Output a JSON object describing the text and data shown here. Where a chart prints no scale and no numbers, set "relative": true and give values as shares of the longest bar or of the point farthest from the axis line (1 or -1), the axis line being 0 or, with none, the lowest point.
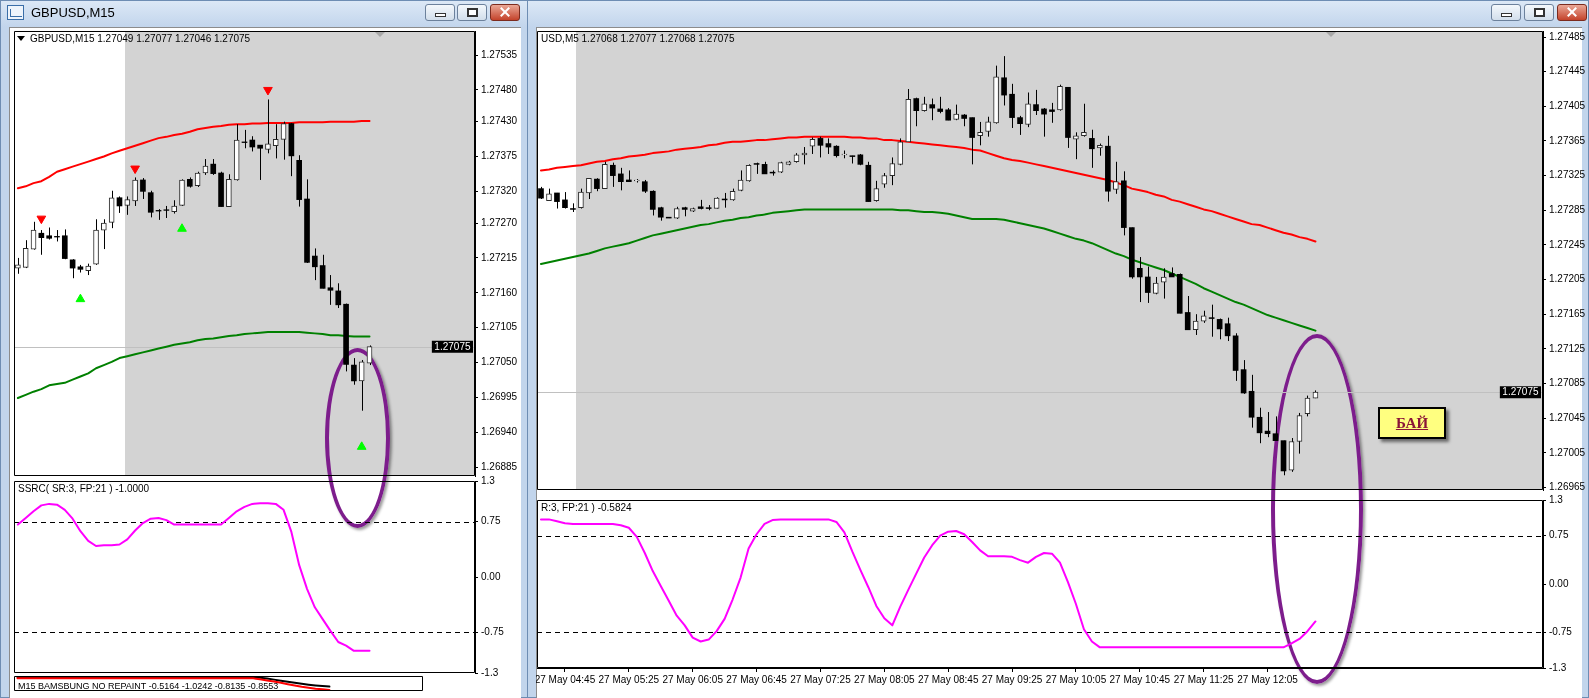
{
  "chart_data": [
    {
      "type": "candlestick",
      "title": "GBPUSD,M15",
      "subtitle": "GBPUSD,M15 1.27049 1.27077 1.27046 1.27075",
      "categories": [
        null,
        null,
        null,
        null,
        null,
        null,
        null,
        null,
        null,
        null,
        null,
        null,
        null,
        null,
        null,
        null,
        null,
        null,
        null,
        null,
        null,
        null,
        null,
        null,
        null,
        null,
        null,
        null,
        null,
        null,
        null,
        null,
        null,
        null,
        null,
        null,
        null,
        null,
        null,
        null,
        null,
        null,
        null,
        null,
        null,
        null,
        null,
        null,
        null,
        null,
        null,
        null,
        null,
        null,
        null,
        null,
        null,
        null,
        null
      ],
      "ohlc": [
        [
          1.27199,
          1.27215,
          1.2719,
          1.27204
        ],
        [
          1.272,
          1.27243,
          1.27199,
          1.2723
        ],
        [
          1.27229,
          1.27272,
          1.27228,
          1.27259
        ],
        [
          1.27254,
          1.27259,
          1.2722,
          1.27247
        ],
        [
          1.2725,
          1.27263,
          1.27244,
          1.27246
        ],
        [
          1.27249,
          1.27259,
          1.27241,
          1.27248
        ],
        [
          1.2725,
          1.2726,
          1.27213,
          1.27214
        ],
        [
          1.27212,
          1.27213,
          1.27183,
          1.27199
        ],
        [
          1.27201,
          1.27204,
          1.27192,
          1.27197
        ],
        [
          1.27195,
          1.27206,
          1.27188,
          1.27202
        ],
        [
          1.27205,
          1.27276,
          1.27204,
          1.27259
        ],
        [
          1.27259,
          1.27276,
          1.27229,
          1.2727
        ],
        [
          1.27271,
          1.27321,
          1.27262,
          1.2731
        ],
        [
          1.2731,
          1.27312,
          1.27286,
          1.27297
        ],
        [
          1.27298,
          1.27312,
          1.27283,
          1.27307
        ],
        [
          1.27305,
          1.27342,
          1.27297,
          1.27338
        ],
        [
          1.27338,
          1.27341,
          1.27308,
          1.2732
        ],
        [
          1.27318,
          1.27321,
          1.27279,
          1.27287
        ],
        [
          1.2729,
          1.27292,
          1.27275,
          1.27289
        ],
        [
          1.27291,
          1.27297,
          1.27278,
          1.2729
        ],
        [
          1.27288,
          1.27306,
          1.27285,
          1.27297
        ],
        [
          1.27298,
          1.27339,
          1.27297,
          1.27338
        ],
        [
          1.27339,
          1.27342,
          1.27326,
          1.27328
        ],
        [
          1.27329,
          1.27351,
          1.27327,
          1.27349
        ],
        [
          1.27349,
          1.27371,
          1.27346,
          1.2736
        ],
        [
          1.27363,
          1.27371,
          1.27346,
          1.27348
        ],
        [
          1.27349,
          1.27351,
          1.27296,
          1.27296
        ],
        [
          1.27296,
          1.27347,
          1.27296,
          1.27339
        ],
        [
          1.27338,
          1.27426,
          1.27337,
          1.27401
        ],
        [
          1.27398,
          1.27417,
          1.27388,
          1.27397
        ],
        [
          1.27401,
          1.27407,
          1.27383,
          1.2739
        ],
        [
          1.27393,
          1.27393,
          1.27338,
          1.27388
        ],
        [
          1.27386,
          1.27465,
          1.2738,
          1.27395
        ],
        [
          1.27392,
          1.27426,
          1.27372,
          1.27402
        ],
        [
          1.27402,
          1.2743,
          1.2737,
          1.27427
        ],
        [
          1.27427,
          1.27428,
          1.27344,
          1.27376
        ],
        [
          1.27369,
          1.27377,
          1.27296,
          1.27307
        ],
        [
          1.27308,
          1.27339,
          1.27207,
          1.27208
        ],
        [
          1.27218,
          1.2723,
          1.2718,
          1.27201
        ],
        [
          1.27203,
          1.2722,
          1.27167,
          1.27167
        ],
        [
          1.27168,
          1.27188,
          1.27141,
          1.27164
        ],
        [
          1.27163,
          1.27175,
          1.27136,
          1.27141
        ],
        [
          1.27142,
          1.27143,
          1.27036,
          1.27047
        ],
        [
          1.27046,
          1.27057,
          1.27015,
          1.27021
        ],
        [
          1.27021,
          1.27054,
          1.26974,
          1.27051
        ],
        [
          1.27049,
          1.27077,
          1.27046,
          1.27075
        ],
        null,
        null,
        null,
        null,
        null,
        null,
        null,
        null,
        null,
        null,
        null,
        null,
        null
      ],
      "series": [
        {
          "type": "line",
          "color": "#ff0000",
          "values": [
            1.27325,
            1.27328,
            1.27333,
            1.27336,
            1.27343,
            1.27351,
            1.27355,
            1.27359,
            1.27363,
            1.27367,
            1.27371,
            1.27375,
            1.2738,
            1.27384,
            1.27388,
            1.27392,
            1.27396,
            1.274,
            1.27404,
            1.27406,
            1.27409,
            1.27411,
            1.27414,
            1.27418,
            1.2742,
            1.27422,
            1.27423,
            1.27425,
            1.27426,
            1.27426,
            1.27427,
            1.27427,
            1.27428,
            1.27428,
            1.27428,
            1.27428,
            1.27429,
            1.27429,
            1.27429,
            1.27429,
            1.2743,
            1.2743,
            1.2743,
            1.2743,
            1.27431,
            1.27431,
            null,
            null,
            null,
            null,
            null,
            null,
            null,
            null,
            null,
            null,
            null,
            null,
            null
          ]
        },
        {
          "type": "line",
          "color": "#008000",
          "values": [
            1.26994,
            1.26999,
            1.27004,
            1.27008,
            1.27014,
            1.27016,
            1.27018,
            1.27023,
            1.27028,
            1.27033,
            1.27041,
            1.27046,
            1.27051,
            1.27057,
            1.2706,
            1.27063,
            1.27066,
            1.27069,
            1.27072,
            1.27075,
            1.27078,
            1.2708,
            1.27082,
            1.27085,
            1.27087,
            1.27088,
            1.2709,
            1.27092,
            1.27093,
            1.27095,
            1.27096,
            1.27097,
            1.27098,
            1.27098,
            1.27098,
            1.27098,
            1.27098,
            1.27097,
            1.27096,
            1.27095,
            1.27093,
            1.27093,
            1.27092,
            1.27091,
            1.27091,
            1.27091,
            null,
            null,
            null,
            null,
            null,
            null,
            null,
            null,
            null,
            null,
            null,
            null,
            null
          ]
        },
        {
          "type": "scatter",
          "color": "#ff0000",
          "marker": "triangle",
          "values": [
            null,
            null,
            null,
            1.27277,
            null,
            null,
            null,
            null,
            null,
            null,
            null,
            null,
            null,
            null,
            null,
            1.27356,
            null,
            null,
            null,
            null,
            null,
            null,
            null,
            null,
            null,
            null,
            null,
            null,
            null,
            null,
            null,
            null,
            1.2748,
            null,
            null,
            null,
            null,
            null,
            null,
            null,
            null,
            null,
            null,
            null,
            null,
            null,
            null,
            null,
            null,
            null,
            null,
            null,
            null,
            null,
            null,
            null,
            null,
            null,
            null
          ]
        },
        {
          "type": "scatter",
          "color": "#00ff00",
          "marker": "triangle",
          "values": [
            null,
            null,
            null,
            null,
            null,
            null,
            null,
            null,
            1.2715,
            null,
            null,
            null,
            null,
            null,
            null,
            null,
            null,
            null,
            null,
            null,
            null,
            1.27261,
            null,
            null,
            null,
            null,
            null,
            null,
            null,
            null,
            null,
            null,
            null,
            null,
            null,
            null,
            null,
            null,
            null,
            null,
            null,
            null,
            null,
            null,
            1.26917,
            null,
            null,
            null,
            null,
            null,
            null,
            null,
            null,
            null,
            null,
            null,
            null,
            null,
            null
          ]
        }
      ],
      "ylim": [
        1.26871,
        1.27573
      ],
      "yticks": [
        1.26885,
        {
          "value": 1.2694,
          "label": "1.26940"
        },
        1.26995,
        {
          "value": 1.2705,
          "label": "1.27050"
        },
        1.27105,
        {
          "value": 1.2716,
          "label": "1.27160"
        },
        1.27215,
        {
          "value": 1.2727,
          "label": "1.27270"
        },
        {
          "value": 1.2732,
          "label": "1.27320"
        },
        1.27375,
        {
          "value": 1.2743,
          "label": "1.27430"
        },
        {
          "value": 1.2748,
          "label": "1.27480"
        },
        1.27535
      ],
      "ref_lines": [
        {
          "axis": "y",
          "value": 1.27075,
          "label": "1.27075",
          "color": "#c0c0c0"
        }
      ],
      "tick_labels": "y"
    },
    {
      "type": "line",
      "title": "SSRC( SR:3, FP:21 ) -1.0000",
      "categories": [
        null,
        null,
        null,
        null,
        null,
        null,
        null,
        null,
        null,
        null,
        null,
        null,
        null,
        null,
        null,
        null,
        null,
        null,
        null,
        null,
        null,
        null,
        null,
        null,
        null,
        null,
        null,
        null,
        null,
        null,
        null,
        null,
        null,
        null,
        null,
        null,
        null,
        null,
        null,
        null,
        null,
        null,
        null,
        null,
        null,
        null,
        null,
        null,
        null,
        null,
        null,
        null,
        null,
        null,
        null,
        null,
        null,
        null,
        null
      ],
      "series": [
        {
          "color": "#ff00ff",
          "values": [
            0.71,
            0.8,
            0.89,
            0.97,
            0.99,
            0.98,
            0.91,
            0.79,
            0.62,
            0.49,
            0.42,
            0.43,
            0.43,
            0.44,
            0.51,
            0.63,
            0.73,
            0.79,
            0.8,
            0.77,
            0.71,
            0.71,
            0.71,
            0.71,
            0.71,
            0.71,
            0.71,
            0.8,
            0.89,
            0.95,
            0.99,
            1.0,
            1.0,
            0.99,
            0.91,
            0.61,
            0.16,
            -0.16,
            -0.41,
            -0.57,
            -0.73,
            -0.88,
            -0.93,
            -1.0,
            -1.0,
            -1.0,
            null,
            null,
            null,
            null,
            null,
            null,
            null,
            null,
            null,
            null,
            null,
            null,
            null
          ]
        }
      ],
      "ylim": [
        -1.3,
        1.3
      ],
      "yticks": [
        -1.3,
        -0.75,
        {
          "value": 0,
          "label": "0.00"
        },
        0.75,
        1.3
      ],
      "ref_lines": [
        {
          "axis": "y",
          "value": 0.75,
          "color": "#000000",
          "line_style": "dashed"
        },
        {
          "axis": "y",
          "value": -0.75,
          "color": "#000000",
          "line_style": "dashed"
        }
      ],
      "tick_labels": "y"
    },
    {
      "type": "line",
      "title": "M15 BAMSBUNG NO REPAINT -0.5164 -1.0242 -0.8135 -0.8553",
      "relative": true,
      "tick_labels": false,
      "categories": [
        null,
        null,
        null,
        null,
        null,
        null,
        null,
        null,
        null,
        null,
        null,
        null,
        null,
        null,
        null,
        null,
        null,
        null,
        null,
        null,
        null,
        null,
        null,
        null,
        null,
        null,
        null,
        null,
        null,
        null,
        null,
        null,
        null,
        null,
        null,
        null,
        null,
        null,
        null,
        null,
        null,
        null,
        null,
        null,
        null,
        null,
        null,
        null,
        null,
        null,
        null,
        null,
        null,
        null,
        null,
        null,
        null,
        null,
        null
      ],
      "series": [
        {
          "color": "#ff0000",
          "values": [
            0.9,
            0.9,
            0.9,
            0.9,
            0.9,
            0.9,
            0.9,
            0.9,
            0.9,
            0.9,
            0.9,
            0.9,
            0.9,
            0.9,
            0.9,
            0.9,
            0.9,
            0.9,
            0.9,
            0.9,
            0.9,
            0.9,
            0.9,
            0.9,
            0.9,
            0.9,
            0.9,
            0.9,
            0.9,
            0.9,
            0.9,
            0.9,
            0.9,
            0.9,
            0.9,
            0.82,
            0.74,
            0.65,
            0.55,
            0.45,
            0.35,
            0.25,
            0.17,
            0.1,
            0.05,
            0,
            null,
            null,
            null,
            null,
            null,
            null,
            null,
            null,
            null,
            null,
            null,
            null,
            null
          ]
        },
        {
          "color": "#000000",
          "values": [
            1,
            1,
            1,
            1,
            1,
            1,
            1,
            1,
            1,
            1,
            1,
            1,
            1,
            1,
            1,
            1,
            1,
            1,
            1,
            1,
            1,
            1,
            1,
            1,
            1,
            1,
            1,
            1,
            1,
            1,
            1,
            1,
            1,
            1,
            1,
            0.95,
            0.88,
            0.8,
            0.72,
            0.64,
            0.56,
            0.48,
            0.41,
            0.35,
            0.3,
            0.26,
            null,
            null,
            null,
            null,
            null,
            null,
            null,
            null,
            null,
            null,
            null,
            null,
            null
          ]
        }
      ]
    },
    {
      "type": "candlestick",
      "title": "USD,M5 1.27068 1.27077 1.27068 1.27075",
      "categories": [
        null,
        null,
        null,
        null,
        null,
        null,
        null,
        null,
        null,
        null,
        null,
        null,
        null,
        null,
        null,
        null,
        null,
        null,
        null,
        null,
        null,
        null,
        null,
        null,
        null,
        null,
        null,
        null,
        null,
        null,
        null,
        null,
        null,
        null,
        null,
        null,
        null,
        null,
        null,
        null,
        null,
        null,
        null,
        null,
        null,
        null,
        null,
        null,
        null,
        null,
        null,
        null,
        null,
        null,
        null,
        null,
        null,
        null,
        null,
        null,
        null,
        null,
        null,
        null,
        null,
        null,
        null,
        null,
        null,
        null,
        null,
        null,
        null,
        null,
        null,
        null,
        null,
        null,
        null,
        null,
        null,
        null,
        null,
        null,
        null,
        null,
        null,
        null,
        null,
        null,
        null,
        null,
        null,
        null,
        null,
        null,
        null,
        null,
        null,
        null,
        null,
        null,
        null,
        null,
        null,
        null,
        null,
        null,
        null,
        null,
        null,
        null,
        null,
        null,
        null,
        null,
        null,
        null,
        null,
        null,
        null,
        null,
        null,
        null,
        null,
        null
      ],
      "ohlc": [
        [
          1.2731,
          1.27312,
          1.27298,
          1.27299
        ],
        [
          1.27296,
          1.2731,
          1.27296,
          1.27304
        ],
        [
          1.27305,
          1.27305,
          1.27287,
          1.27295
        ],
        [
          1.27297,
          1.27306,
          1.27287,
          1.27288
        ],
        [
          1.27287,
          1.27293,
          1.27283,
          1.27286
        ],
        [
          1.27288,
          1.2731,
          1.27287,
          1.27306
        ],
        [
          1.27305,
          1.27322,
          1.27298,
          1.27322
        ],
        [
          1.27321,
          1.27322,
          1.27307,
          1.2731
        ],
        [
          1.2731,
          1.27341,
          1.2731,
          1.27338
        ],
        [
          1.27337,
          1.2734,
          1.27312,
          1.27325
        ],
        [
          1.27327,
          1.27334,
          1.27308,
          1.27318
        ],
        [
          1.2732,
          1.27331,
          1.27318,
          1.27318
        ],
        [
          1.27319,
          1.27321,
          1.27317,
          1.2732
        ],
        [
          1.27318,
          1.2732,
          1.27305,
          1.27307
        ],
        [
          1.27307,
          1.27308,
          1.27279,
          1.27286
        ],
        [
          1.27288,
          1.27289,
          1.27273,
          1.27277
        ],
        [
          1.27277,
          1.27277,
          1.27276,
          1.27276
        ],
        [
          1.27276,
          1.27289,
          1.27275,
          1.27287
        ],
        [
          1.27288,
          1.27289,
          1.27278,
          1.27286
        ],
        [
          1.27284,
          1.27288,
          1.27283,
          1.27287
        ],
        [
          1.27289,
          1.27297,
          1.27286,
          1.27287
        ],
        [
          1.27288,
          1.27291,
          1.27285,
          1.27287
        ],
        [
          1.27287,
          1.273,
          1.27287,
          1.27299
        ],
        [
          1.27298,
          1.27305,
          1.27288,
          1.27297
        ],
        [
          1.27297,
          1.2731,
          1.27296,
          1.27307
        ],
        [
          1.27308,
          1.27331,
          1.27307,
          1.2732
        ],
        [
          1.27319,
          1.27338,
          1.27318,
          1.27337
        ],
        [
          1.27339,
          1.2734,
          1.27327,
          1.27338
        ],
        [
          1.27338,
          1.27341,
          1.27327,
          1.27327
        ],
        [
          1.27329,
          1.27331,
          1.27325,
          1.27328
        ],
        [
          1.27329,
          1.27341,
          1.27328,
          1.2734
        ],
        [
          1.27338,
          1.27342,
          1.27337,
          1.27341
        ],
        [
          1.27341,
          1.27351,
          1.2734,
          1.27349
        ],
        [
          1.27349,
          1.27358,
          1.27338,
          1.27351
        ],
        [
          1.27359,
          1.27369,
          1.2735,
          1.27367
        ],
        [
          1.27368,
          1.2737,
          1.27346,
          1.2736
        ],
        [
          1.27362,
          1.27368,
          1.2735,
          1.27358
        ],
        [
          1.27359,
          1.2736,
          1.27346,
          1.27348
        ],
        [
          1.27349,
          1.27354,
          1.27345,
          1.2735
        ],
        [
          1.27348,
          1.27348,
          1.27339,
          1.27347
        ],
        [
          1.27349,
          1.2735,
          1.27337,
          1.27338
        ],
        [
          1.27337,
          1.27341,
          1.27295,
          1.27295
        ],
        [
          1.27296,
          1.27319,
          1.27295,
          1.2731
        ],
        [
          1.27315,
          1.27328,
          1.27311,
          1.27325
        ],
        [
          1.27325,
          1.27346,
          1.27314,
          1.27339
        ],
        [
          1.27338,
          1.27368,
          1.27337,
          1.27364
        ],
        [
          1.27364,
          1.27425,
          1.27364,
          1.27413
        ],
        [
          1.27414,
          1.27415,
          1.27382,
          1.274
        ],
        [
          1.274,
          1.27416,
          1.27399,
          1.27408
        ],
        [
          1.27407,
          1.27414,
          1.27389,
          1.27403
        ],
        [
          1.27402,
          1.27416,
          1.27397,
          1.27399
        ],
        [
          1.27401,
          1.27403,
          1.27389,
          1.27389
        ],
        [
          1.2739,
          1.27407,
          1.27389,
          1.27396
        ],
        [
          1.27395,
          1.27396,
          1.27382,
          1.27391
        ],
        [
          1.27392,
          1.27392,
          1.27338,
          1.27369
        ],
        [
          1.27371,
          1.27387,
          1.2736,
          1.27375
        ],
        [
          1.27376,
          1.27393,
          1.2737,
          1.27387
        ],
        [
          1.27386,
          1.27452,
          1.27385,
          1.27439
        ],
        [
          1.27438,
          1.27463,
          1.27406,
          1.27418
        ],
        [
          1.27419,
          1.27431,
          1.2738,
          1.27392
        ],
        [
          1.27392,
          1.27394,
          1.27372,
          1.27385
        ],
        [
          1.27384,
          1.27421,
          1.27381,
          1.27408
        ],
        [
          1.27407,
          1.27424,
          1.27395,
          1.274
        ],
        [
          1.27402,
          1.27403,
          1.2737,
          1.27396
        ],
        [
          1.27401,
          1.27409,
          1.27386,
          1.27399
        ],
        [
          1.27401,
          1.2743,
          1.274,
          1.27428
        ],
        [
          1.27427,
          1.27427,
          1.27357,
          1.27369
        ],
        [
          1.27367,
          1.27375,
          1.27344,
          1.27371
        ],
        [
          1.27371,
          1.27408,
          1.2737,
          1.27375
        ],
        [
          1.27368,
          1.27378,
          1.27334,
          1.27356
        ],
        [
          1.27357,
          1.27362,
          1.27348,
          1.2736
        ],
        [
          1.27359,
          1.27371,
          1.27295,
          1.27307
        ],
        [
          1.27309,
          1.27341,
          1.27304,
          1.27318
        ],
        [
          1.27319,
          1.2733,
          1.27256,
          1.27265
        ],
        [
          1.27265,
          1.27265,
          1.27206,
          1.27208
        ],
        [
          1.27218,
          1.27231,
          1.27179,
          1.27208
        ],
        [
          1.27208,
          1.2722,
          1.27178,
          1.2719
        ],
        [
          1.27189,
          1.27208,
          1.27188,
          1.27201
        ],
        [
          1.27202,
          1.27218,
          1.27183,
          1.27208
        ],
        [
          1.27212,
          1.27219,
          1.27208,
          1.27208
        ],
        [
          1.27211,
          1.27212,
          1.27166,
          1.27166
        ],
        [
          1.27167,
          1.27186,
          1.27147,
          1.27147
        ],
        [
          1.27147,
          1.27165,
          1.27141,
          1.27157
        ],
        [
          1.27157,
          1.27169,
          1.27155,
          1.27163
        ],
        [
          1.27161,
          1.27176,
          1.27139,
          1.2716
        ],
        [
          1.27159,
          1.2716,
          1.27136,
          1.27148
        ],
        [
          1.27154,
          1.27161,
          1.27134,
          1.2714
        ],
        [
          1.2714,
          1.27143,
          1.27088,
          1.271
        ],
        [
          1.27101,
          1.27112,
          1.27073,
          1.27074
        ],
        [
          1.27076,
          1.27095,
          1.27034,
          1.27046
        ],
        [
          1.27046,
          1.27057,
          1.27016,
          1.27028
        ],
        [
          1.2703,
          1.27052,
          1.27023,
          1.27027
        ],
        [
          1.27027,
          1.27047,
          1.27019,
          1.27019
        ],
        [
          1.27019,
          1.27019,
          1.26979,
          1.26984
        ],
        [
          1.26985,
          1.27022,
          1.26983,
          1.27018
        ],
        [
          1.27018,
          1.27051,
          1.27004,
          1.27048
        ],
        [
          1.2705,
          1.27071,
          1.27047,
          1.27068
        ],
        [
          1.27068,
          1.27077,
          1.27068,
          1.27075
        ],
        null,
        null,
        null,
        null,
        null,
        null,
        null,
        null,
        null,
        null,
        null,
        null,
        null,
        null,
        null,
        null,
        null,
        null,
        null,
        null,
        null,
        null,
        null,
        null,
        null,
        null,
        null,
        null
      ],
      "series": [
        {
          "type": "line",
          "color": "#ff0000",
          "values": [
            1.27331,
            1.27332,
            1.27334,
            1.27335,
            1.27336,
            1.27337,
            1.27339,
            1.27341,
            1.27342,
            1.27344,
            1.27345,
            1.27347,
            1.27348,
            1.27349,
            1.27351,
            1.27352,
            1.27353,
            1.27355,
            1.27356,
            1.27357,
            1.27358,
            1.2736,
            1.27361,
            1.27363,
            1.27364,
            1.27364,
            1.27365,
            1.27366,
            1.27366,
            1.27367,
            1.27368,
            1.27369,
            1.27369,
            1.2737,
            1.2737,
            1.2737,
            1.2737,
            1.2737,
            1.2737,
            1.27369,
            1.27369,
            1.27368,
            1.27368,
            1.27366,
            1.27366,
            1.27365,
            1.27364,
            1.27363,
            1.27362,
            1.27361,
            1.2736,
            1.27359,
            1.27358,
            1.27357,
            1.27355,
            1.27354,
            1.27351,
            1.27348,
            1.27345,
            1.27343,
            1.27342,
            1.2734,
            1.27338,
            1.27336,
            1.27334,
            1.27332,
            1.2733,
            1.27328,
            1.27326,
            1.27324,
            1.27322,
            1.2732,
            1.27317,
            1.27314,
            1.2731,
            1.27308,
            1.27306,
            1.27303,
            1.27301,
            1.27297,
            1.27295,
            1.27292,
            1.27289,
            1.27286,
            1.27284,
            1.27281,
            1.27278,
            1.27275,
            1.27272,
            1.27269,
            1.27268,
            1.27265,
            1.27262,
            1.27259,
            1.27257,
            1.27254,
            1.27252,
            1.27249,
            null,
            null,
            null,
            null,
            null,
            null,
            null,
            null,
            null,
            null,
            null,
            null,
            null,
            null,
            null,
            null,
            null,
            null,
            null,
            null,
            null,
            null,
            null,
            null,
            null,
            null,
            null,
            null
          ]
        },
        {
          "type": "line",
          "color": "#008000",
          "values": [
            1.27223,
            1.27225,
            1.27227,
            1.27229,
            1.27231,
            1.27233,
            1.27235,
            1.27238,
            1.27241,
            1.27243,
            1.27245,
            1.27247,
            1.2725,
            1.27253,
            1.27256,
            1.27258,
            1.2726,
            1.27262,
            1.27264,
            1.27266,
            1.27268,
            1.27269,
            1.27271,
            1.27273,
            1.27274,
            1.27276,
            1.27277,
            1.27279,
            1.2728,
            1.27282,
            1.27283,
            1.27284,
            1.27285,
            1.27286,
            1.27286,
            1.27286,
            1.27286,
            1.27286,
            1.27286,
            1.27286,
            1.27286,
            1.27286,
            1.27286,
            1.27286,
            1.27286,
            1.27285,
            1.27285,
            1.27284,
            1.27283,
            1.27283,
            1.27282,
            1.27281,
            1.27279,
            1.27277,
            1.27275,
            1.27275,
            1.27275,
            1.27275,
            1.27274,
            1.27272,
            1.2727,
            1.27268,
            1.27266,
            1.27264,
            1.27261,
            1.27258,
            1.27255,
            1.27252,
            1.2725,
            1.27247,
            1.27243,
            1.27239,
            1.27235,
            1.27232,
            1.27228,
            1.27225,
            1.27222,
            1.27219,
            1.27216,
            1.27212,
            1.27208,
            1.27204,
            1.272,
            1.27195,
            1.27191,
            1.27187,
            1.27183,
            1.27179,
            1.27176,
            1.27172,
            1.27168,
            1.27164,
            1.27161,
            1.27158,
            1.27155,
            1.27152,
            1.27149,
            1.27146,
            null,
            null,
            null,
            null,
            null,
            null,
            null,
            null,
            null,
            null,
            null,
            null,
            null,
            null,
            null,
            null,
            null,
            null,
            null,
            null,
            null,
            null,
            null,
            null,
            null,
            null,
            null,
            null
          ]
        }
      ],
      "ylim": [
        1.26962,
        1.27492
      ],
      "yticks": [
        1.26965,
        1.27005,
        1.27045,
        1.27085,
        1.27125,
        1.27165,
        1.27205,
        1.27245,
        1.27285,
        1.27325,
        1.27365,
        1.27405,
        1.27445,
        1.27485
      ],
      "ref_lines": [
        {
          "axis": "y",
          "value": 1.27075,
          "label": "1.27075",
          "color": "#c0c0c0"
        }
      ],
      "annotations": [
        "БАЙ"
      ],
      "tick_labels": "y"
    },
    {
      "type": "line",
      "title": "R:3, FP:21 ) -0.5824",
      "categories": [
        null,
        null,
        null,
        "27 May 04:45",
        null,
        null,
        null,
        null,
        null,
        null,
        null,
        "27 May 05:25",
        null,
        null,
        null,
        null,
        null,
        null,
        null,
        "27 May 06:05",
        null,
        null,
        null,
        null,
        null,
        null,
        null,
        "27 May 06:45",
        null,
        null,
        null,
        null,
        null,
        null,
        null,
        "27 May 07:25",
        null,
        null,
        null,
        null,
        null,
        null,
        null,
        "27 May 08:05",
        null,
        null,
        null,
        null,
        null,
        null,
        null,
        "27 May 08:45",
        null,
        null,
        null,
        null,
        null,
        null,
        null,
        "27 May 09:25",
        null,
        null,
        null,
        null,
        null,
        null,
        null,
        "27 May 10:05",
        null,
        null,
        null,
        null,
        null,
        null,
        null,
        "27 May 10:45",
        null,
        null,
        null,
        null,
        null,
        null,
        null,
        "27 May 11:25",
        null,
        null,
        null,
        null,
        null,
        null,
        null,
        "27 May 12:05",
        null,
        null,
        null,
        null,
        null,
        null,
        null,
        null,
        null,
        null,
        null,
        null,
        null,
        null,
        null,
        null,
        null,
        null,
        null,
        null,
        null,
        null,
        null,
        null,
        null,
        null,
        null,
        null,
        null,
        null,
        null,
        null,
        null,
        null
      ],
      "series": [
        {
          "color": "#ff00ff",
          "values": [
            1.0,
            1.0,
            0.97,
            0.94,
            0.93,
            0.93,
            0.93,
            0.93,
            0.93,
            0.93,
            0.91,
            0.87,
            0.73,
            0.48,
            0.2,
            -0.03,
            -0.26,
            -0.49,
            -0.64,
            -0.83,
            -0.89,
            -0.86,
            -0.73,
            -0.54,
            -0.24,
            0.1,
            0.55,
            0.77,
            0.93,
            0.99,
            1.0,
            1.0,
            1.0,
            1.0,
            1.0,
            1.0,
            1.0,
            0.96,
            0.8,
            0.5,
            0.22,
            -0.05,
            -0.34,
            -0.53,
            -0.64,
            -0.35,
            -0.09,
            0.16,
            0.41,
            0.6,
            0.75,
            0.81,
            0.82,
            0.77,
            0.65,
            0.52,
            0.43,
            0.43,
            0.43,
            0.42,
            0.37,
            0.33,
            0.42,
            0.48,
            0.47,
            0.33,
            0.03,
            -0.31,
            -0.7,
            -0.89,
            -0.98,
            -0.98,
            -0.98,
            -0.98,
            -0.98,
            -0.98,
            -0.98,
            -0.98,
            -0.98,
            -0.98,
            -0.98,
            -0.98,
            -0.98,
            -0.98,
            -0.98,
            -0.98,
            -0.98,
            -0.98,
            -0.98,
            -0.98,
            -0.98,
            -0.98,
            -0.98,
            -0.98,
            -0.92,
            -0.85,
            -0.73,
            -0.58,
            null,
            null,
            null,
            null,
            null,
            null,
            null,
            null,
            null,
            null,
            null,
            null,
            null,
            null,
            null,
            null,
            null,
            null,
            null,
            null,
            null,
            null,
            null,
            null,
            null,
            null,
            null,
            null
          ]
        }
      ],
      "ylim": [
        -1.3,
        1.3
      ],
      "yticks": [
        -1.3,
        -0.75,
        {
          "value": 0,
          "label": "0.00"
        },
        0.75,
        1.3
      ],
      "ref_lines": [
        {
          "axis": "y",
          "value": 0.75,
          "color": "#000000",
          "line_style": "dashed"
        },
        {
          "axis": "y",
          "value": -0.75,
          "color": "#000000",
          "line_style": "dashed"
        }
      ]
    }
  ]
}
